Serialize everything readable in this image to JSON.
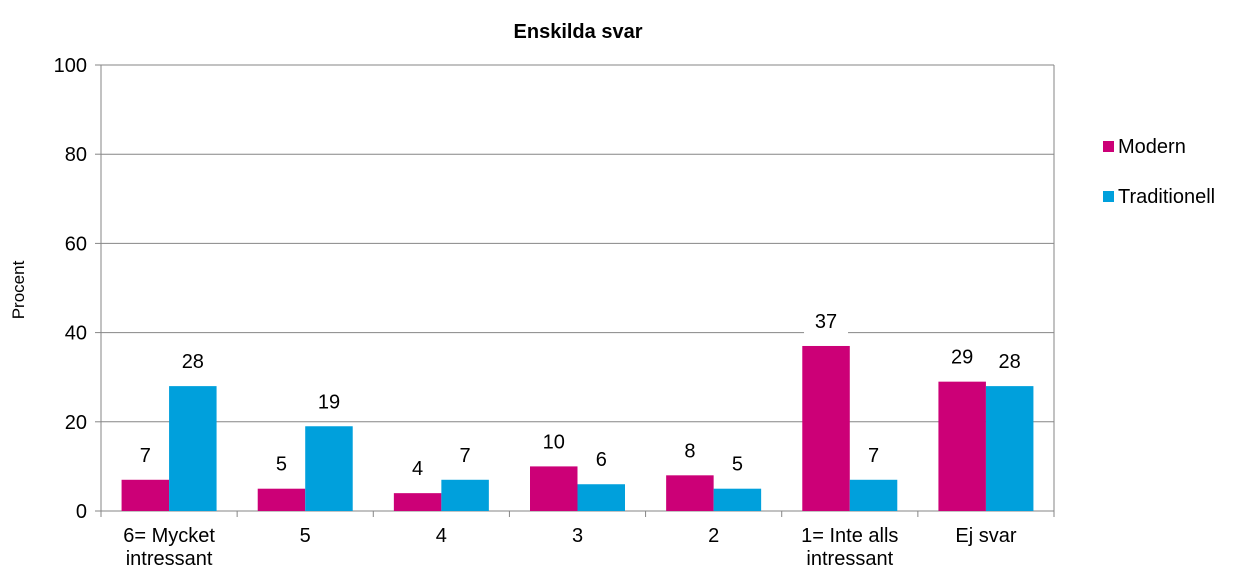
{
  "chart_data": {
    "type": "bar",
    "title": "Enskilda svar",
    "y_label": "Procent",
    "categories": [
      "6= Mycket intressant",
      "5",
      "4",
      "3",
      "2",
      "1= Inte alls intressant",
      "Ej svar"
    ],
    "series": [
      {
        "name": "Modern",
        "color": "#cc0077",
        "values": [
          7,
          5,
          4,
          10,
          8,
          37,
          29
        ]
      },
      {
        "name": "Traditionell",
        "color": "#00a0dc",
        "values": [
          28,
          19,
          7,
          6,
          5,
          7,
          28
        ]
      }
    ],
    "ylim": [
      0,
      100
    ],
    "yticks": [
      0,
      20,
      40,
      60,
      80,
      100
    ],
    "grid": true,
    "legend": "right"
  }
}
